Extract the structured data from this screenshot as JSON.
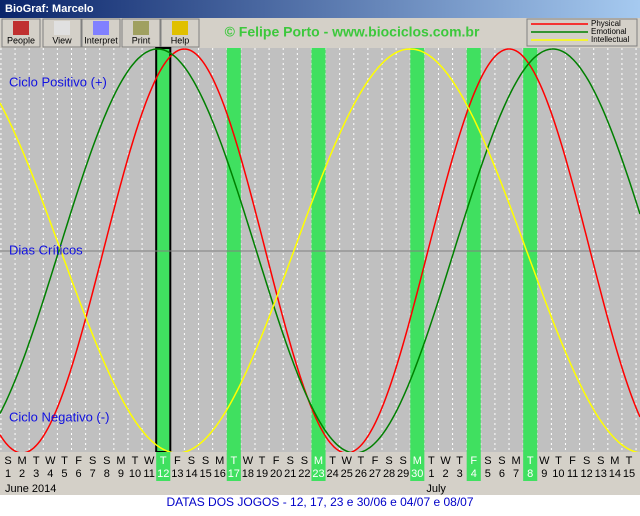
{
  "window": {
    "title": "BioGraf: Marcelo"
  },
  "toolbar": [
    "People",
    "View",
    "Interpret",
    "Print",
    "Help"
  ],
  "credit": "© Felipe Porto - www.biociclos.com.br",
  "legend": [
    "Physical",
    "Emotional",
    "Intellectual"
  ],
  "levels": [
    "Ciclo Positivo (+)",
    "Dias Críticos",
    "Ciclo Negativo (-)"
  ],
  "weekdays": [
    "S",
    "M",
    "T",
    "W",
    "T",
    "F",
    "S",
    "S",
    "M",
    "T",
    "W",
    "T",
    "F",
    "S",
    "S",
    "M",
    "T",
    "W",
    "T",
    "F",
    "S",
    "S",
    "M",
    "T",
    "W",
    "T",
    "F",
    "S",
    "S",
    "M",
    "T",
    "W",
    "T",
    "F",
    "S",
    "S",
    "M",
    "T",
    "W",
    "T",
    "F",
    "S",
    "S",
    "M",
    "T"
  ],
  "dates": [
    "1",
    "2",
    "3",
    "4",
    "5",
    "6",
    "7",
    "8",
    "9",
    "10",
    "11",
    "12",
    "13",
    "14",
    "15",
    "16",
    "17",
    "18",
    "19",
    "20",
    "21",
    "22",
    "23",
    "24",
    "25",
    "26",
    "27",
    "28",
    "29",
    "30",
    "1",
    "2",
    "3",
    "4",
    "5",
    "6",
    "7",
    "8",
    "9",
    "10",
    "11",
    "12",
    "13",
    "14",
    "15"
  ],
  "months": [
    "June 2014",
    "July"
  ],
  "status": "DATAS DOS JOGOS - 12, 17, 23 e 30/06 e 04/07 e 08/07"
}
